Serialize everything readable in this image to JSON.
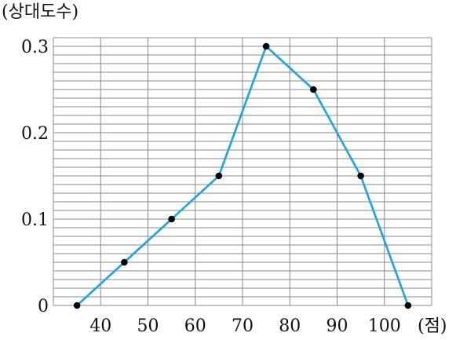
{
  "chart_data": {
    "type": "line",
    "title": "",
    "ylabel": "(상대도수)",
    "xlabel": "(점)",
    "x": [
      35,
      45,
      55,
      65,
      75,
      85,
      95,
      105
    ],
    "series": [
      {
        "values": [
          0,
          0.05,
          0.1,
          0.15,
          0.3,
          0.25,
          0.15,
          0
        ]
      }
    ],
    "xticks": [
      "40",
      "50",
      "60",
      "70",
      "80",
      "90",
      "100"
    ],
    "xtick_values": [
      40,
      50,
      60,
      70,
      80,
      90,
      100
    ],
    "yticks": [
      "0",
      "0.1",
      "0.2",
      "0.3"
    ],
    "ytick_values": [
      0,
      0.1,
      0.2,
      0.3
    ],
    "xlim": [
      30,
      110
    ],
    "ylim": [
      0,
      0.31
    ],
    "grid": true,
    "line_color": "#1ba3e3",
    "point_color": "#000000"
  }
}
